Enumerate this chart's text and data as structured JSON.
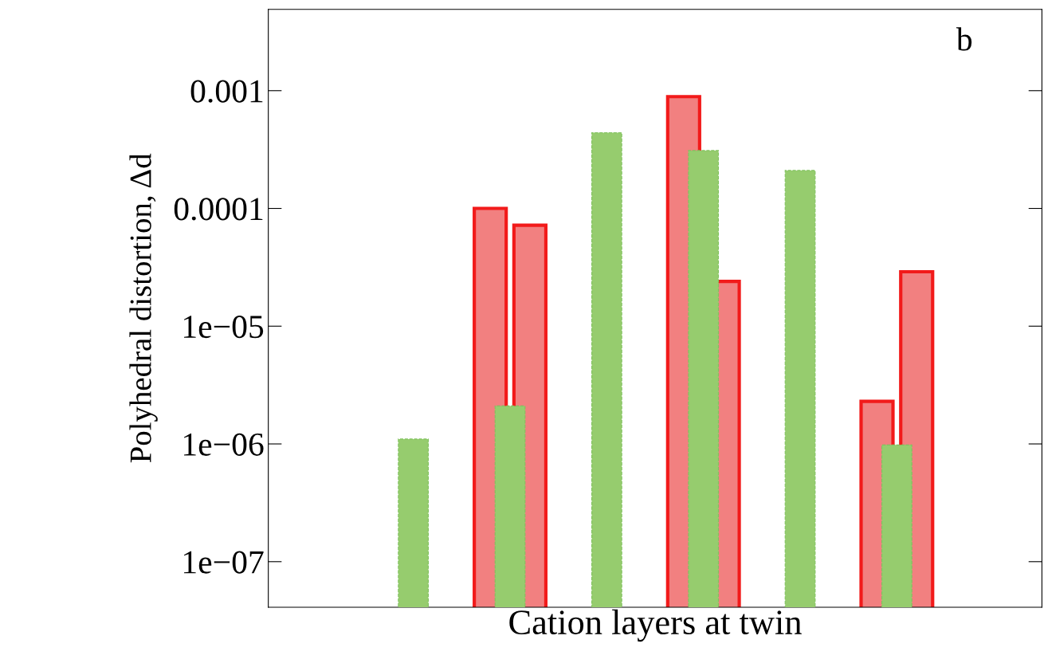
{
  "chart_data": {
    "type": "bar",
    "xlabel": "Cation layers at twin",
    "ylabel": "Polyhedral distortion, Δd",
    "annotations": [
      "b"
    ],
    "categories": [
      null,
      null,
      null,
      null,
      null,
      null,
      null,
      null
    ],
    "series": [
      {
        "color": "#f28080",
        "values": [
          null,
          null,
          0.0001,
          null,
          0.00089,
          null,
          2.3e-06,
          null
        ]
      },
      {
        "color": "#f28080",
        "values": [
          null,
          null,
          7.2e-05,
          null,
          2.4e-05,
          null,
          2.9e-05,
          null
        ]
      },
      {
        "color": "#96cc6e",
        "values": [
          null,
          1.1e-06,
          2.1e-06,
          0.00044,
          0.00031,
          0.00021,
          9.8e-07,
          null
        ]
      }
    ],
    "log": "y",
    "ylim": [
      4.1e-08,
      0.0049
    ],
    "yticks": [
      {
        "value": 1e-07,
        "label": "1e−07"
      },
      {
        "value": 1e-06,
        "label": "1e−06"
      },
      {
        "value": 1e-05,
        "label": "1e−05"
      },
      0.0001,
      0.001
    ],
    "tick_labels": "y",
    "grid": false,
    "legend": false
  }
}
